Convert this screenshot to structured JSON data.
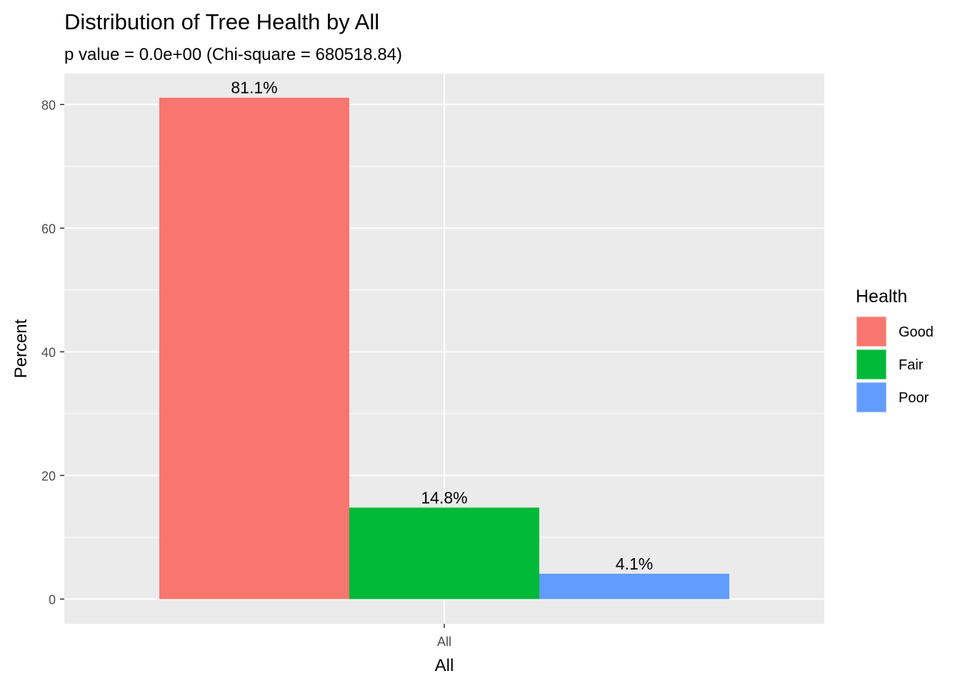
{
  "chart_data": {
    "type": "bar",
    "title": "Distribution of Tree Health by All",
    "subtitle": "p value = 0.0e+00 (Chi-square = 680518.84)",
    "xlabel": "All",
    "ylabel": "Percent",
    "categories": [
      "All"
    ],
    "series": [
      {
        "name": "Good",
        "values": [
          81.1
        ],
        "label": "81.1%",
        "color": "#F8766D"
      },
      {
        "name": "Fair",
        "values": [
          14.8
        ],
        "label": "14.8%",
        "color": "#00BA38"
      },
      {
        "name": "Poor",
        "values": [
          4.1
        ],
        "label": "4.1%",
        "color": "#619CFF"
      }
    ],
    "ylim": [
      -4,
      85
    ],
    "yticks": [
      0,
      20,
      40,
      60,
      80
    ],
    "legend": {
      "title": "Health",
      "position": "right"
    },
    "grid": true,
    "panel_background": "#EBEBEB"
  }
}
